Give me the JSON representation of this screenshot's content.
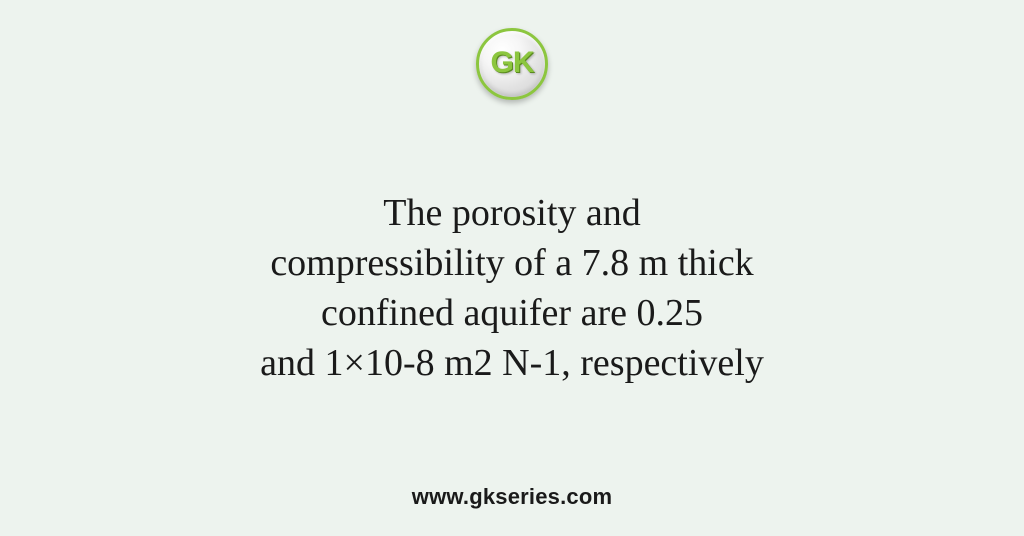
{
  "logo": {
    "text": "GK",
    "border_color": "#8cc63f",
    "text_color": "#8cc63f"
  },
  "content": {
    "line1": "The porosity and",
    "line2": "compressibility of a 7.8 m thick",
    "line3": "confined aquifer are 0.25",
    "line4": "and 1×10-8 m2 N-1, respectively"
  },
  "footer": {
    "url": "www.gkseries.com"
  },
  "style": {
    "background_color": "#edf3ee",
    "text_color": "#1a1a1a",
    "main_fontsize": 38,
    "footer_fontsize": 22,
    "logo_fontsize": 30
  }
}
